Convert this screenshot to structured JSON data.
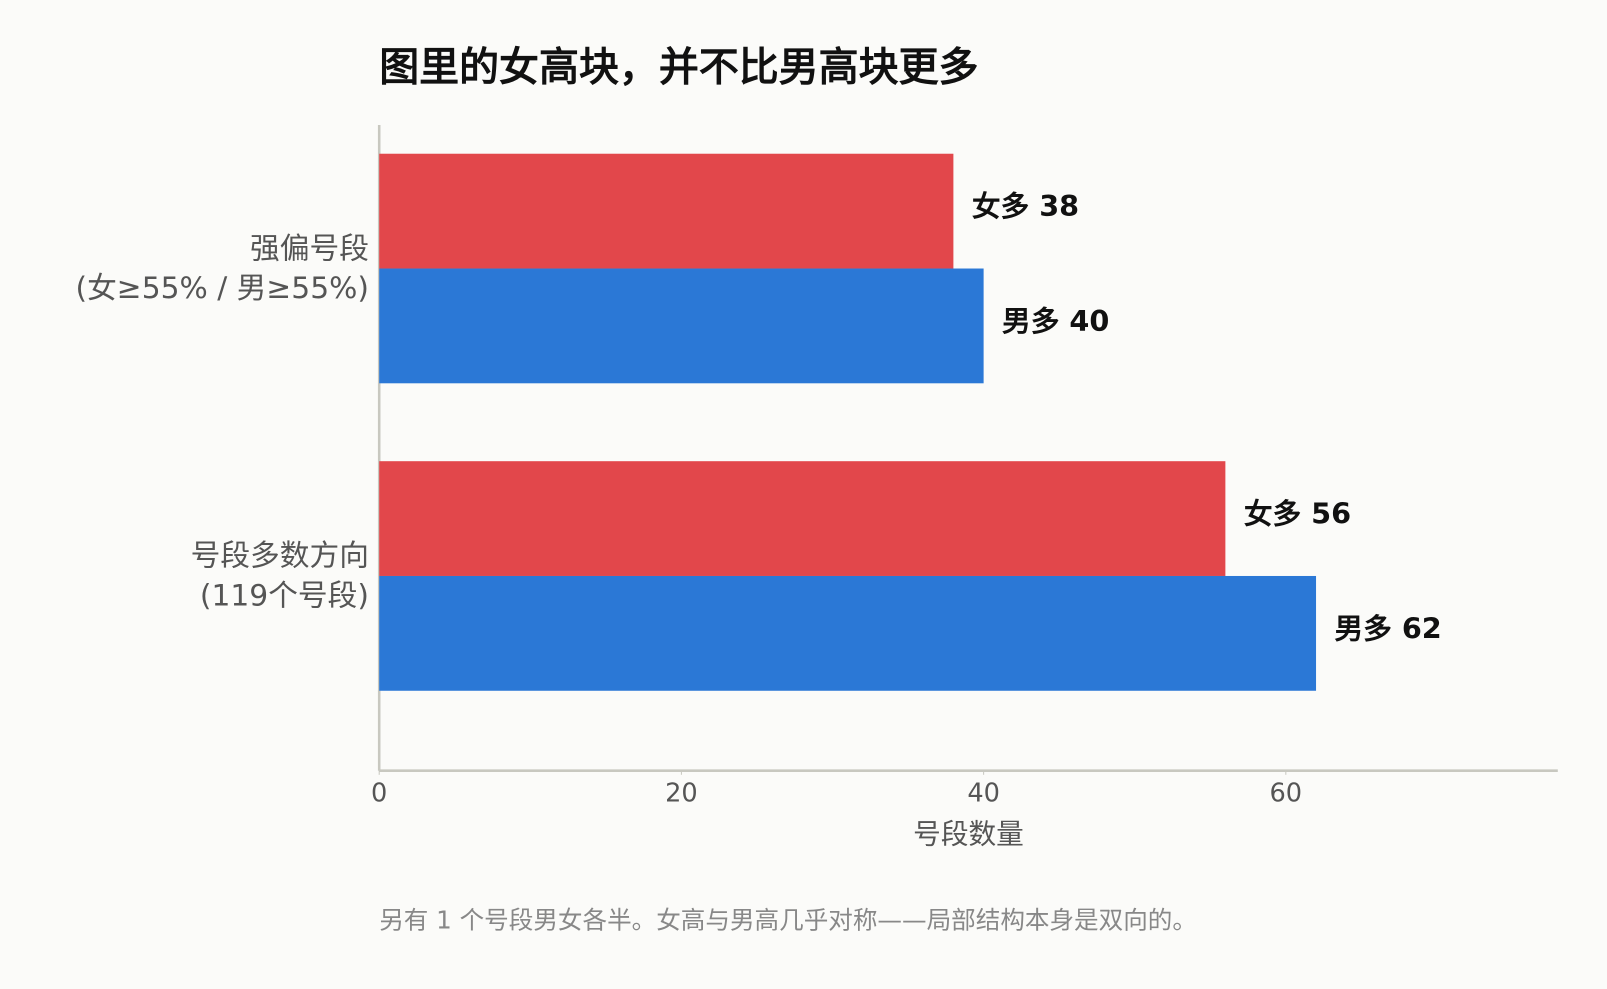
{
  "chart_data": {
    "type": "bar",
    "orientation": "horizontal",
    "title": "图里的女高块，并不比男高块更多",
    "categories": [
      "强偏号段\n(女≥55% / 男≥55%)",
      "号段多数方向\n(119个号段)"
    ],
    "series": [
      {
        "color": "#e2474b",
        "values": [
          38,
          56
        ],
        "value_labels": [
          "女多 38",
          "女多 56"
        ]
      },
      {
        "color": "#2b78d6",
        "values": [
          40,
          62
        ],
        "value_labels": [
          "男多 40",
          "男多 62"
        ]
      }
    ],
    "xlim": [
      0,
      78
    ],
    "xticks": [
      0,
      20,
      40,
      60
    ],
    "xlabel": "号段数量",
    "footnote": "另有 1 个号段男女各半。女高与男高几乎对称——局部结构本身是双向的。"
  }
}
